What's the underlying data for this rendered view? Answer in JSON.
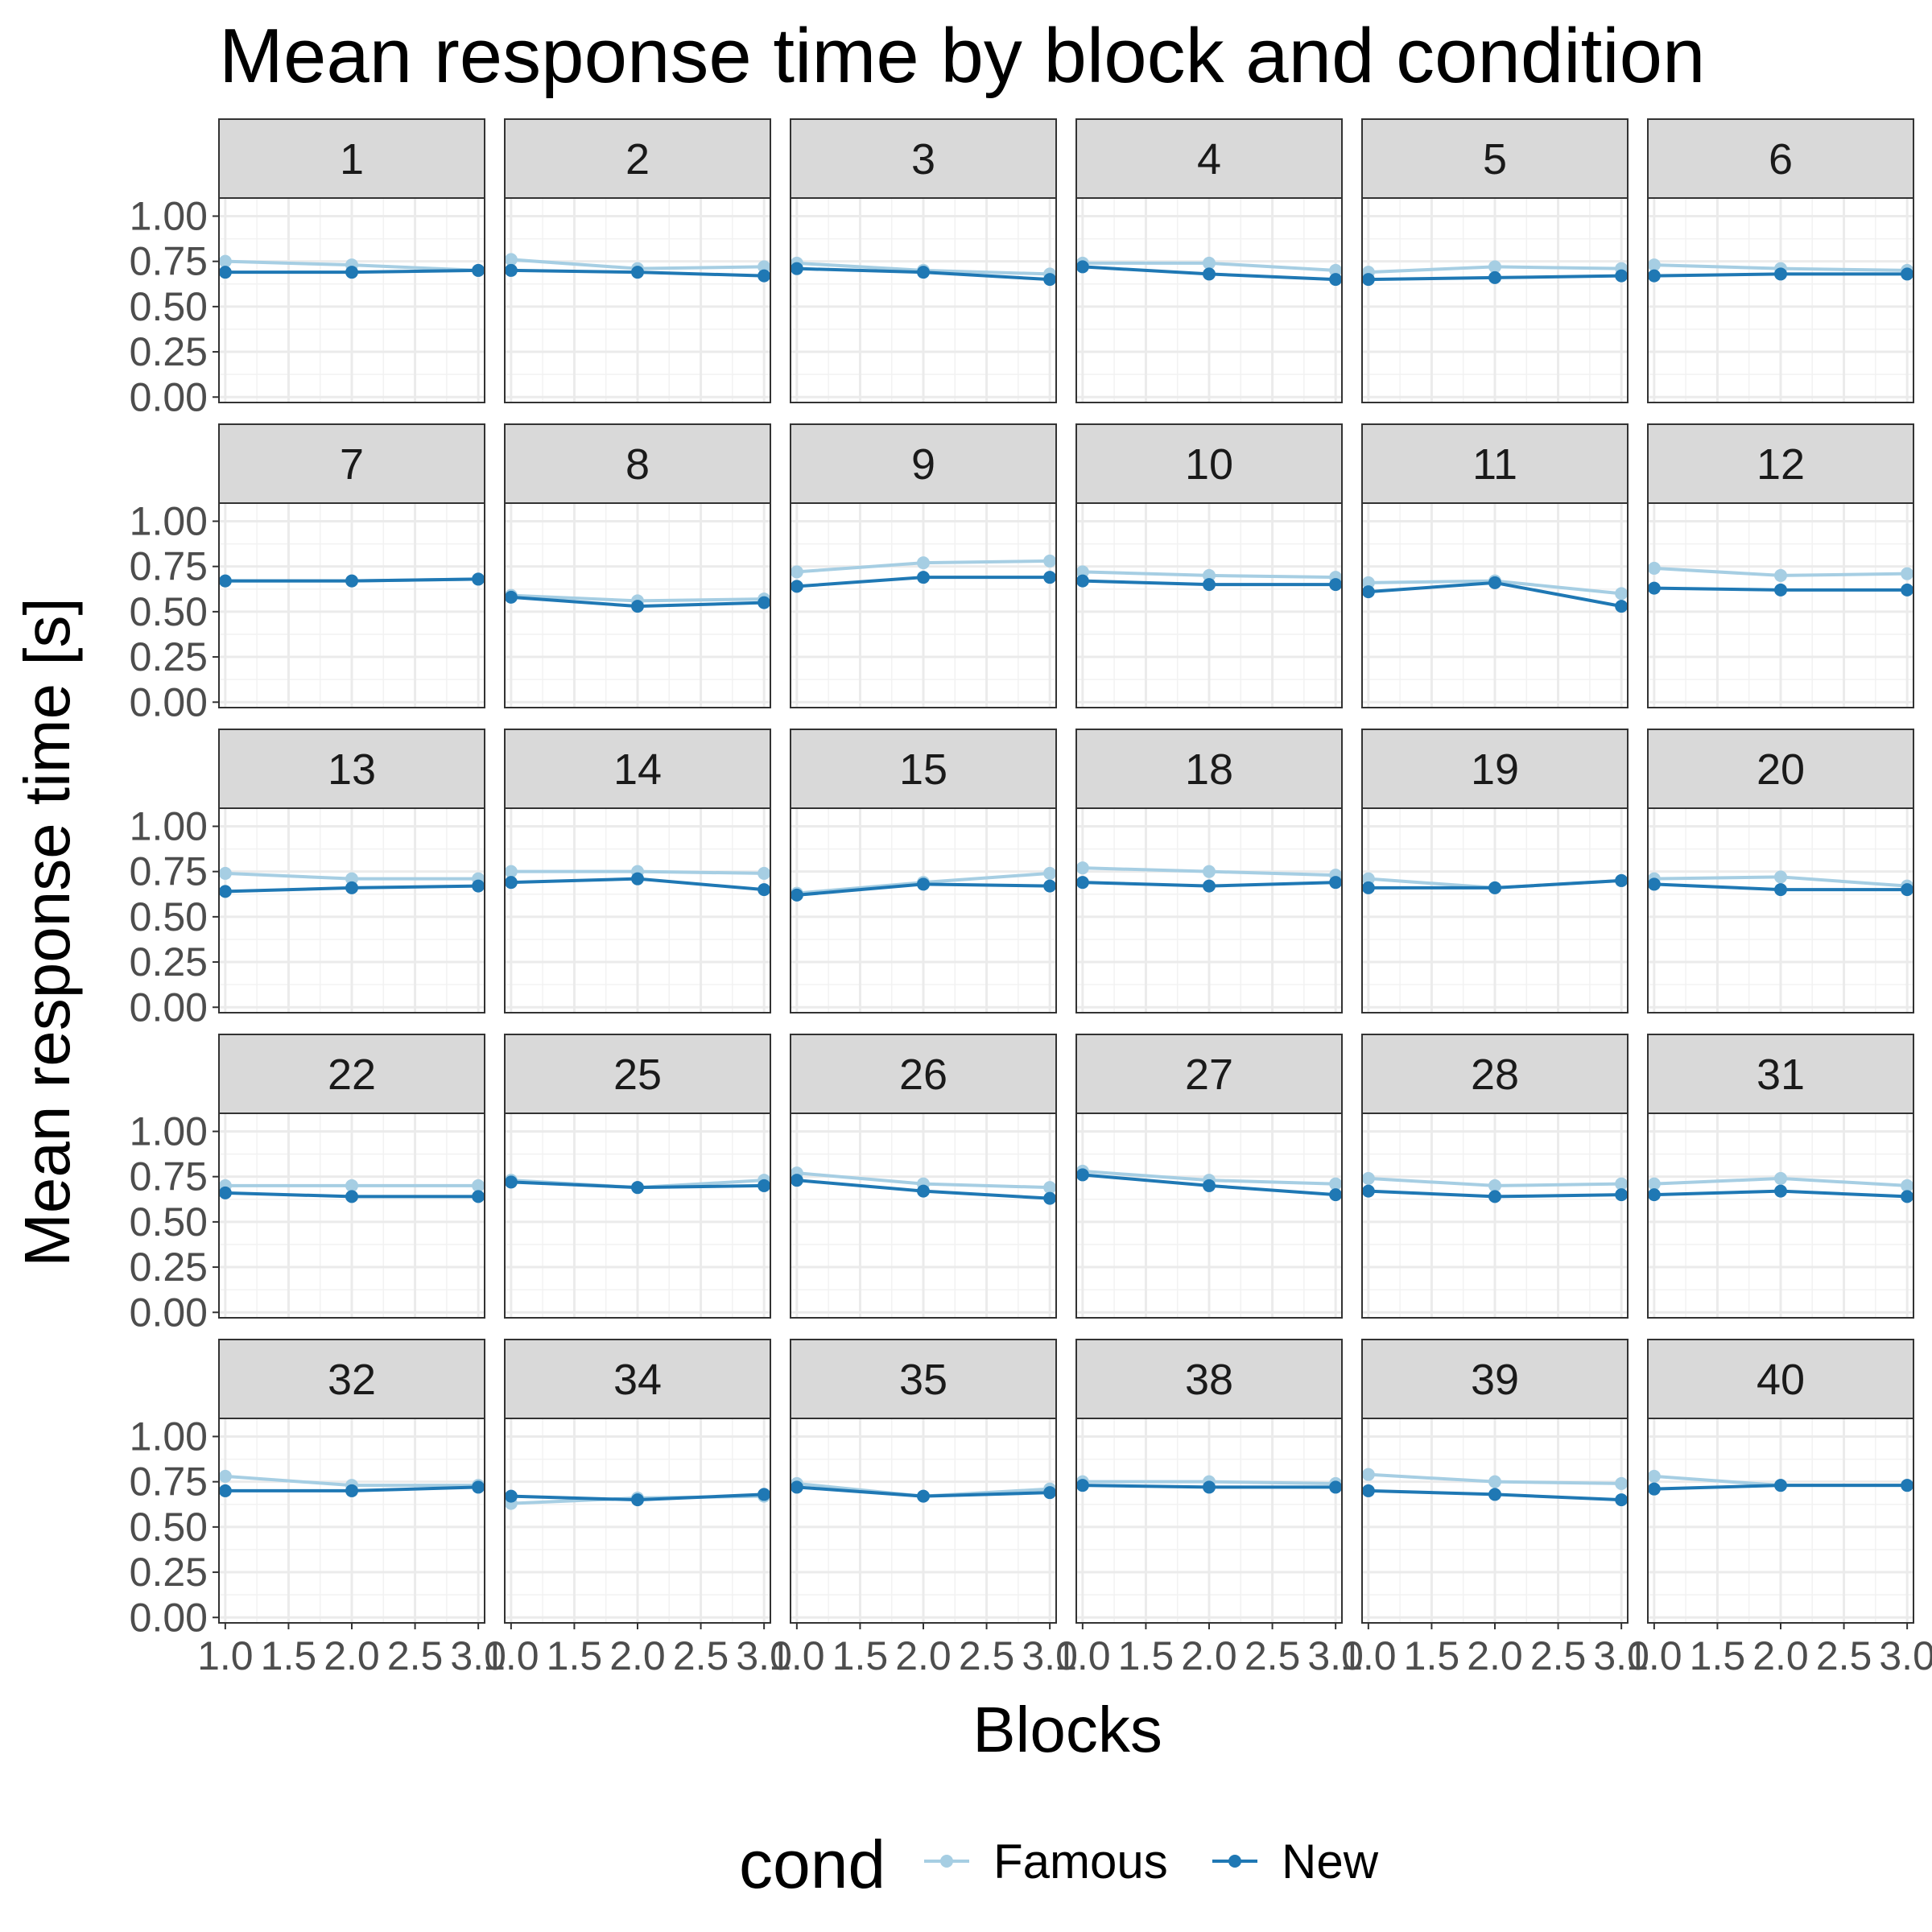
{
  "chart_data": {
    "type": "line",
    "title": "Mean response time by block and condition",
    "xlabel": "Blocks",
    "ylabel": "Mean response time [s]",
    "x": [
      1,
      2,
      3
    ],
    "xlim": [
      0.95,
      3.05
    ],
    "ylim": [
      -0.03,
      1.1
    ],
    "x_ticks": [
      1.0,
      1.5,
      2.0,
      2.5,
      3.0
    ],
    "x_tick_labels": [
      "1.0",
      "1.5",
      "2.0",
      "2.5",
      "3.0"
    ],
    "y_ticks": [
      0,
      0.25,
      0.5,
      0.75,
      1.0
    ],
    "y_tick_labels": [
      "0.00",
      "0.25",
      "0.50",
      "0.75",
      "1.00"
    ],
    "grid": true,
    "legend": {
      "title": "cond",
      "position": "bottom",
      "entries": [
        {
          "name": "Famous",
          "color": "#a6cee3"
        },
        {
          "name": "New",
          "color": "#1f78b4"
        }
      ]
    },
    "series_names": [
      "Famous",
      "New"
    ],
    "facets": [
      {
        "label": "1",
        "famous": [
          0.75,
          0.73,
          0.7
        ],
        "new": [
          0.69,
          0.69,
          0.7
        ]
      },
      {
        "label": "2",
        "famous": [
          0.76,
          0.71,
          0.72
        ],
        "new": [
          0.7,
          0.69,
          0.67
        ]
      },
      {
        "label": "3",
        "famous": [
          0.74,
          0.7,
          0.68
        ],
        "new": [
          0.71,
          0.69,
          0.65
        ]
      },
      {
        "label": "4",
        "famous": [
          0.74,
          0.74,
          0.7
        ],
        "new": [
          0.72,
          0.68,
          0.65
        ]
      },
      {
        "label": "5",
        "famous": [
          0.69,
          0.72,
          0.71
        ],
        "new": [
          0.65,
          0.66,
          0.67
        ]
      },
      {
        "label": "6",
        "famous": [
          0.73,
          0.71,
          0.7
        ],
        "new": [
          0.67,
          0.68,
          0.68
        ]
      },
      {
        "label": "7",
        "famous": [
          0.67,
          0.67,
          0.68
        ],
        "new": [
          0.67,
          0.67,
          0.68
        ]
      },
      {
        "label": "8",
        "famous": [
          0.59,
          0.56,
          0.57
        ],
        "new": [
          0.58,
          0.53,
          0.55
        ]
      },
      {
        "label": "9",
        "famous": [
          0.72,
          0.77,
          0.78
        ],
        "new": [
          0.64,
          0.69,
          0.69
        ]
      },
      {
        "label": "10",
        "famous": [
          0.72,
          0.7,
          0.69
        ],
        "new": [
          0.67,
          0.65,
          0.65
        ]
      },
      {
        "label": "11",
        "famous": [
          0.66,
          0.67,
          0.6
        ],
        "new": [
          0.61,
          0.66,
          0.53
        ]
      },
      {
        "label": "12",
        "famous": [
          0.74,
          0.7,
          0.71
        ],
        "new": [
          0.63,
          0.62,
          0.62
        ]
      },
      {
        "label": "13",
        "famous": [
          0.74,
          0.71,
          0.71
        ],
        "new": [
          0.64,
          0.66,
          0.67
        ]
      },
      {
        "label": "14",
        "famous": [
          0.75,
          0.75,
          0.74
        ],
        "new": [
          0.69,
          0.71,
          0.65
        ]
      },
      {
        "label": "15",
        "famous": [
          0.63,
          0.69,
          0.74
        ],
        "new": [
          0.62,
          0.68,
          0.67
        ]
      },
      {
        "label": "18",
        "famous": [
          0.77,
          0.75,
          0.73
        ],
        "new": [
          0.69,
          0.67,
          0.69
        ]
      },
      {
        "label": "19",
        "famous": [
          0.71,
          0.66,
          0.7
        ],
        "new": [
          0.66,
          0.66,
          0.7
        ]
      },
      {
        "label": "20",
        "famous": [
          0.71,
          0.72,
          0.67
        ],
        "new": [
          0.68,
          0.65,
          0.65
        ]
      },
      {
        "label": "22",
        "famous": [
          0.7,
          0.7,
          0.7
        ],
        "new": [
          0.66,
          0.64,
          0.64
        ]
      },
      {
        "label": "25",
        "famous": [
          0.73,
          0.69,
          0.73
        ],
        "new": [
          0.72,
          0.69,
          0.7
        ]
      },
      {
        "label": "26",
        "famous": [
          0.77,
          0.71,
          0.69
        ],
        "new": [
          0.73,
          0.67,
          0.63
        ]
      },
      {
        "label": "27",
        "famous": [
          0.78,
          0.73,
          0.71
        ],
        "new": [
          0.76,
          0.7,
          0.65
        ]
      },
      {
        "label": "28",
        "famous": [
          0.74,
          0.7,
          0.71
        ],
        "new": [
          0.67,
          0.64,
          0.65
        ]
      },
      {
        "label": "31",
        "famous": [
          0.71,
          0.74,
          0.7
        ],
        "new": [
          0.65,
          0.67,
          0.64
        ]
      },
      {
        "label": "32",
        "famous": [
          0.78,
          0.73,
          0.73
        ],
        "new": [
          0.7,
          0.7,
          0.72
        ]
      },
      {
        "label": "34",
        "famous": [
          0.63,
          0.66,
          0.67
        ],
        "new": [
          0.67,
          0.65,
          0.68
        ]
      },
      {
        "label": "35",
        "famous": [
          0.74,
          0.67,
          0.71
        ],
        "new": [
          0.72,
          0.67,
          0.69
        ]
      },
      {
        "label": "38",
        "famous": [
          0.75,
          0.75,
          0.74
        ],
        "new": [
          0.73,
          0.72,
          0.72
        ]
      },
      {
        "label": "39",
        "famous": [
          0.79,
          0.75,
          0.74
        ],
        "new": [
          0.7,
          0.68,
          0.65
        ]
      },
      {
        "label": "40",
        "famous": [
          0.78,
          0.73,
          0.73
        ],
        "new": [
          0.71,
          0.73,
          0.73
        ]
      }
    ]
  }
}
